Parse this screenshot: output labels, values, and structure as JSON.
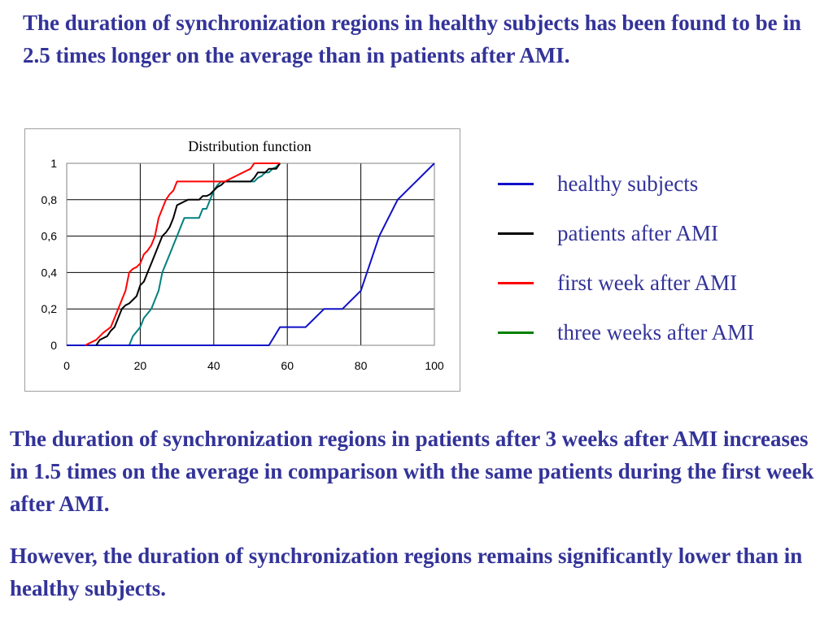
{
  "paragraphs": {
    "top": "The duration of synchronization regions in healthy subjects has been found to be in 2.5 times longer on the average than in patients after AMI.",
    "middle": "The duration of synchronization regions in patients after 3 weeks after AMI increases in 1.5 times on the average in comparison with the same patients during the first week after AMI.",
    "bottom": "However, the duration of synchronization regions remains significantly lower than in healthy subjects."
  },
  "chart_data": {
    "type": "line",
    "title": "Distribution function",
    "xlabel": "",
    "ylabel": "",
    "xlim": [
      0,
      100
    ],
    "ylim": [
      0,
      1
    ],
    "xticks": [
      0,
      20,
      40,
      60,
      80,
      100
    ],
    "yticks": [
      "0",
      "0,2",
      "0,4",
      "0,6",
      "0,8",
      "1"
    ],
    "grid": true,
    "legend_position": "right",
    "series": [
      {
        "name": "healthy subjects",
        "color": "#1010c8",
        "x": [
          0,
          55,
          58,
          65,
          70,
          75,
          80,
          85,
          90,
          95,
          100
        ],
        "y": [
          0,
          0,
          0.1,
          0.1,
          0.2,
          0.2,
          0.3,
          0.6,
          0.8,
          0.9,
          1.0
        ]
      },
      {
        "name": "patients after AMI",
        "color": "#000000",
        "x": [
          8,
          9,
          11,
          12,
          13,
          14,
          15,
          16,
          17,
          18,
          19,
          20,
          21,
          22,
          23,
          24,
          25,
          26,
          27,
          28,
          29,
          30,
          31,
          32,
          33,
          34,
          35,
          36,
          37,
          38,
          39,
          40,
          41,
          42,
          43,
          50,
          51,
          52,
          53,
          54,
          55,
          56,
          57,
          58
        ],
        "y": [
          0,
          0.03,
          0.05,
          0.08,
          0.1,
          0.15,
          0.2,
          0.22,
          0.23,
          0.25,
          0.27,
          0.33,
          0.35,
          0.4,
          0.45,
          0.5,
          0.55,
          0.6,
          0.62,
          0.65,
          0.7,
          0.77,
          0.78,
          0.79,
          0.8,
          0.8,
          0.8,
          0.8,
          0.82,
          0.82,
          0.83,
          0.85,
          0.87,
          0.88,
          0.9,
          0.9,
          0.92,
          0.95,
          0.95,
          0.95,
          0.97,
          0.97,
          0.97,
          1.0
        ]
      },
      {
        "name": "first week after AMI",
        "color": "#ff0000",
        "x": [
          5,
          8,
          9,
          10,
          12,
          13,
          14,
          16,
          17,
          18,
          19,
          20,
          21,
          22,
          23,
          24,
          25,
          26,
          27,
          28,
          29,
          30,
          31,
          32,
          33,
          34,
          35,
          36,
          40,
          43,
          50,
          51,
          52,
          53,
          54,
          55,
          56,
          57,
          58
        ],
        "y": [
          0,
          0.03,
          0.05,
          0.07,
          0.1,
          0.15,
          0.2,
          0.3,
          0.4,
          0.42,
          0.43,
          0.45,
          0.5,
          0.52,
          0.55,
          0.6,
          0.7,
          0.75,
          0.8,
          0.83,
          0.85,
          0.9,
          0.9,
          0.9,
          0.9,
          0.9,
          0.9,
          0.9,
          0.9,
          0.9,
          0.97,
          1.0,
          1.0,
          1.0,
          1.0,
          1.0,
          1.0,
          1.0,
          1.0
        ]
      },
      {
        "name": "three weeks after AMI",
        "color": "#008000",
        "display_color": "#008080",
        "x": [
          5,
          17,
          18,
          20,
          21,
          23,
          24,
          25,
          26,
          27,
          28,
          29,
          30,
          31,
          32,
          33,
          34,
          36,
          37,
          38,
          39,
          40,
          41,
          42,
          43,
          50,
          51,
          52,
          53,
          54,
          55,
          56,
          57,
          58
        ],
        "y": [
          0,
          0,
          0.05,
          0.1,
          0.15,
          0.2,
          0.25,
          0.3,
          0.4,
          0.45,
          0.5,
          0.55,
          0.6,
          0.65,
          0.7,
          0.7,
          0.7,
          0.7,
          0.75,
          0.75,
          0.8,
          0.85,
          0.88,
          0.9,
          0.9,
          0.9,
          0.9,
          0.92,
          0.93,
          0.95,
          0.95,
          0.97,
          0.98,
          1.0
        ]
      }
    ]
  }
}
